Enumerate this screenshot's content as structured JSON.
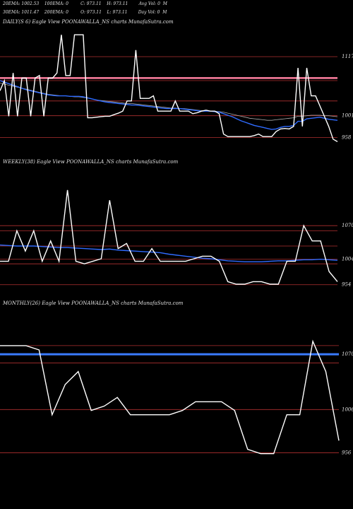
{
  "header": {
    "line1": "20EMA: 1002.53    100EMA: 0         C: 973.11    H: 973.11        Avg Vol: 0  M",
    "line2": "30EMA: 1011.47    200EMA: 0         O: 973.11    L: 973.11        Day Vol: 0  M"
  },
  "chart_data": [
    {
      "type": "line",
      "title": "DAILY(S          6) Eagle   View  POONAWALLA_NS charts MunafaSutra.com",
      "ylim": [
        920,
        1170
      ],
      "y_ticks": [
        1117,
        1001,
        958
      ],
      "price_lines": [
        1117,
        1070,
        1030,
        1001,
        958
      ],
      "price": [
        1050,
        1070,
        1000,
        1085,
        1000,
        1075,
        1075,
        1000,
        1075,
        1080,
        1000,
        1075,
        1075,
        1085,
        1160,
        1080,
        1080,
        1160,
        1160,
        1160,
        997,
        997,
        998,
        999,
        1000,
        1000,
        1003,
        1006,
        1010,
        1030,
        1030,
        1130,
        1035,
        1035,
        1035,
        1040,
        1010,
        1010,
        1010,
        1010,
        1030,
        1010,
        1010,
        1010,
        1005,
        1007,
        1010,
        1012,
        1010,
        1010,
        1005,
        965,
        960,
        960,
        960,
        960,
        960,
        960,
        962,
        965,
        960,
        960,
        960,
        970,
        975,
        976,
        975,
        980,
        1095,
        980,
        1095,
        1040,
        1040,
        1020,
        1000,
        980,
        955,
        950
      ],
      "ema20": [
        1070,
        1067,
        1064,
        1061,
        1058,
        1055,
        1052,
        1050,
        1048,
        1046,
        1044,
        1042,
        1041,
        1040,
        1040,
        1040,
        1039,
        1039,
        1039,
        1038,
        1036,
        1034,
        1032,
        1030,
        1028,
        1027,
        1026,
        1025,
        1024,
        1023,
        1022,
        1022,
        1021,
        1020,
        1019,
        1018,
        1017,
        1016,
        1015,
        1015,
        1015,
        1015,
        1014,
        1013,
        1012,
        1011,
        1010,
        1010,
        1010,
        1009,
        1008,
        1005,
        1002,
        999,
        995,
        991,
        988,
        985,
        982,
        980,
        978,
        976,
        974,
        975,
        978,
        980,
        980,
        982,
        990,
        990,
        995,
        996,
        997,
        998,
        996,
        994,
        993,
        992
      ],
      "ema30": [
        1065,
        1063,
        1061,
        1059,
        1057,
        1055,
        1053,
        1051,
        1049,
        1047,
        1045,
        1043,
        1042,
        1041,
        1040,
        1040,
        1039,
        1038,
        1038,
        1037,
        1036,
        1034,
        1032,
        1031,
        1030,
        1029,
        1028,
        1027,
        1026,
        1025,
        1025,
        1024,
        1023,
        1022,
        1021,
        1020,
        1019,
        1018,
        1017,
        1016,
        1016,
        1015,
        1015,
        1014,
        1013,
        1012,
        1011,
        1011,
        1010,
        1010,
        1009,
        1008,
        1006,
        1004,
        1002,
        1000,
        998,
        996,
        995,
        994,
        993,
        992,
        992,
        993,
        994,
        995,
        996,
        997,
        1000,
        1000,
        1001,
        1002,
        1002,
        1002,
        1001,
        1001,
        1000,
        999
      ]
    },
    {
      "type": "line",
      "title": "WEEKLY(38) Eagle   View  POONAWALLA_NS charts MunafaSutra.com",
      "ylim": [
        930,
        1180
      ],
      "y_ticks": [
        1070,
        1004,
        954
      ],
      "price_lines": [
        1070,
        1060,
        1030,
        1004,
        995,
        954
      ],
      "price": [
        1000,
        1000,
        1060,
        1020,
        1060,
        1000,
        1040,
        1000,
        1140,
        1000,
        995,
        1000,
        1005,
        1120,
        1025,
        1035,
        1000,
        1000,
        1025,
        1000,
        1000,
        1000,
        1000,
        1005,
        1010,
        1010,
        1000,
        960,
        955,
        955,
        960,
        960,
        955,
        955,
        1000,
        1000,
        1070,
        1040,
        1040,
        980,
        960
      ],
      "ema": [
        1032,
        1031,
        1030,
        1030,
        1030,
        1029,
        1028,
        1027,
        1027,
        1026,
        1025,
        1024,
        1023,
        1024,
        1022,
        1021,
        1020,
        1019,
        1018,
        1017,
        1014,
        1012,
        1010,
        1008,
        1006,
        1005,
        1003,
        1001,
        1000,
        999,
        999,
        999,
        1000,
        1001,
        1001,
        1002,
        1003,
        1003,
        1004,
        1003,
        1002
      ]
    },
    {
      "type": "line",
      "title": "MONTHLY(26) Eagle   View  POONAWALLA_NS charts MunafaSutra.com",
      "ylim": [
        940,
        1120
      ],
      "y_ticks": [
        1070,
        1006,
        956
      ],
      "price_lines": [
        1080,
        1070,
        1060,
        1006,
        956
      ],
      "price": [
        1080,
        1080,
        1080,
        1075,
        1000,
        1035,
        1050,
        1005,
        1010,
        1020,
        1000,
        1000,
        1000,
        1000,
        1005,
        1015,
        1015,
        1015,
        1005,
        960,
        955,
        955,
        1000,
        1000,
        1085,
        1050,
        970
      ],
      "ema": [
        1070,
        1070,
        1070,
        1070,
        1070,
        1070,
        1070,
        1070,
        1070,
        1070,
        1070,
        1070,
        1070,
        1070,
        1070,
        1070,
        1070,
        1070,
        1070,
        1070,
        1070,
        1070,
        1070,
        1070,
        1070,
        1070,
        1070
      ]
    }
  ]
}
